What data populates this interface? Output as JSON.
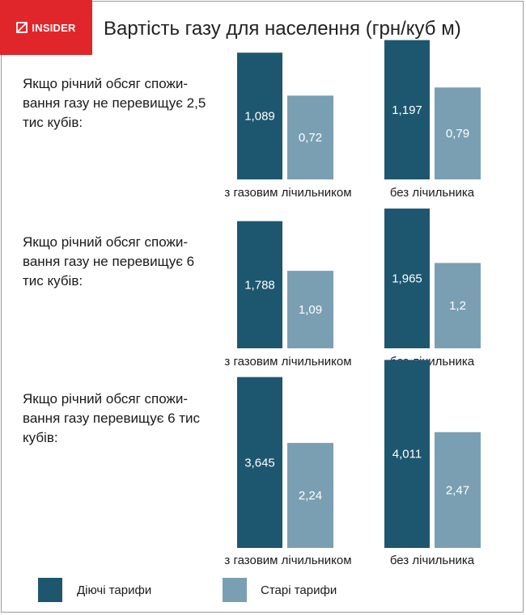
{
  "brand": {
    "logo_text": "INSIDER"
  },
  "title": "Вартість газу для населення (грн/куб м)",
  "sections": [
    {
      "label": "Якщо річний обсяг спожи-вання газу не перевищує 2,5 тис кубів:"
    },
    {
      "label": "Якщо річний обсяг спожи-вання газу не перевищує 6 тис кубів:"
    },
    {
      "label": "Якщо річний обсяг спожи-вання газу перевищує 6 тис кубів:"
    }
  ],
  "legend": [
    {
      "label": "Діючі тарифи"
    },
    {
      "label": "Старі тарифи"
    }
  ],
  "colors": {
    "current": "#1d566f",
    "old": "#7a9fb2",
    "brand": "#e1262b"
  },
  "chart_data": [
    {
      "type": "bar",
      "categories": [
        "з газовим лічильником",
        "без лічильника"
      ],
      "series": [
        {
          "name": "Діючі тарифи",
          "values": [
            1.089,
            1.197
          ],
          "labels": [
            "1,089",
            "1,197"
          ]
        },
        {
          "name": "Старі тарифи",
          "values": [
            0.72,
            0.79
          ],
          "labels": [
            "0,72",
            "0,79"
          ]
        }
      ]
    },
    {
      "type": "bar",
      "categories": [
        "з газовим лічильником",
        "без лічильника"
      ],
      "series": [
        {
          "name": "Діючі тарифи",
          "values": [
            1.788,
            1.965
          ],
          "labels": [
            "1,788",
            "1,965"
          ]
        },
        {
          "name": "Старі тарифи",
          "values": [
            1.09,
            1.2
          ],
          "labels": [
            "1,09",
            "1,2"
          ]
        }
      ]
    },
    {
      "type": "bar",
      "categories": [
        "з газовим лічильником",
        "без лічильника"
      ],
      "series": [
        {
          "name": "Діючі тарифи",
          "values": [
            3.645,
            4.011
          ],
          "labels": [
            "3,645",
            "4,011"
          ]
        },
        {
          "name": "Старі тарифи",
          "values": [
            2.24,
            2.47
          ],
          "labels": [
            "2,24",
            "2,47"
          ]
        }
      ]
    }
  ]
}
